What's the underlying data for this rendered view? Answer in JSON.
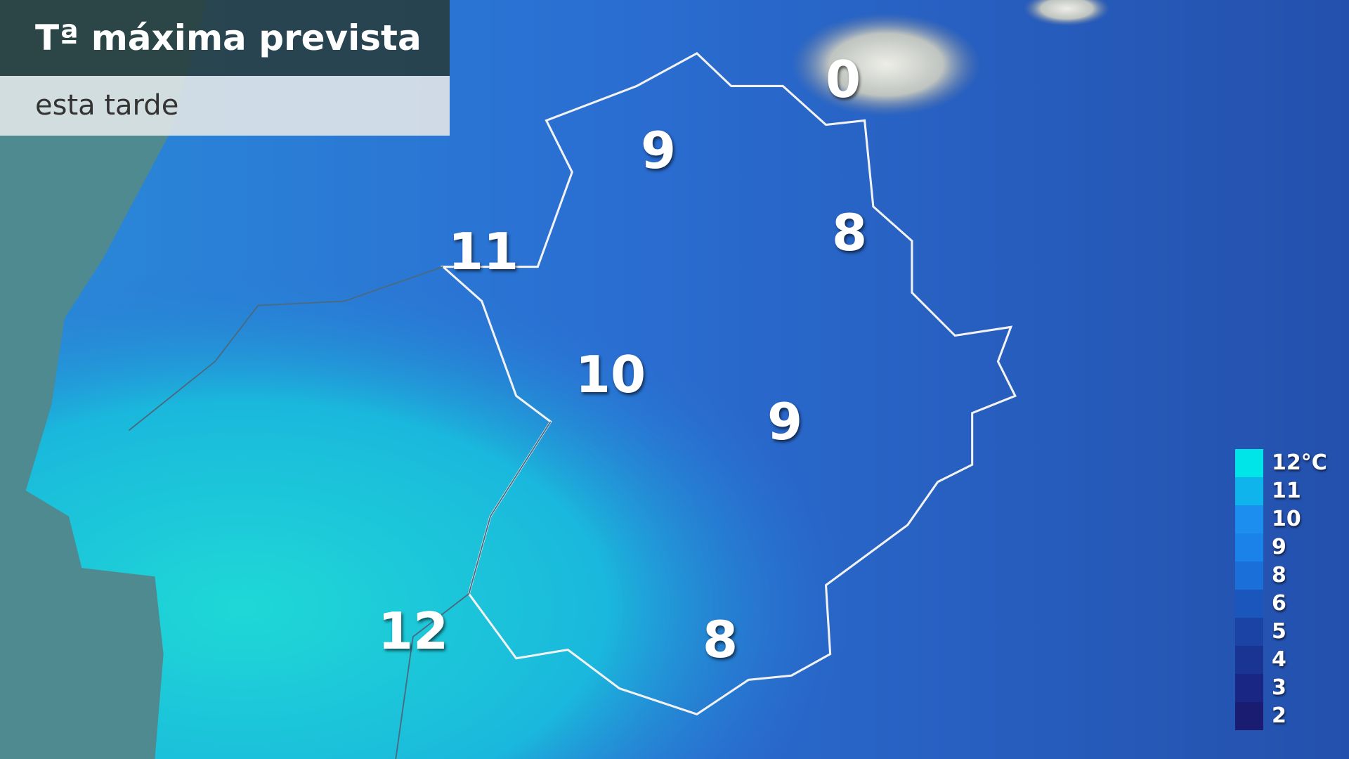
{
  "title": {
    "main": "Tª máxima prevista",
    "sub": "esta tarde"
  },
  "temperatures": [
    {
      "value": "0"
    },
    {
      "value": "9"
    },
    {
      "value": "11"
    },
    {
      "value": "8"
    },
    {
      "value": "10"
    },
    {
      "value": "9"
    },
    {
      "value": "12"
    },
    {
      "value": "8"
    }
  ],
  "legend": {
    "unit": "°C",
    "items": [
      {
        "label": "12°C",
        "color": "#00e5e8"
      },
      {
        "label": "11",
        "color": "#0fb4ec"
      },
      {
        "label": "10",
        "color": "#1b8ef0"
      },
      {
        "label": "9",
        "color": "#1a82e8"
      },
      {
        "label": "8",
        "color": "#1a6fd8"
      },
      {
        "label": "6",
        "color": "#1a56bb"
      },
      {
        "label": "5",
        "color": "#1a43a5"
      },
      {
        "label": "4",
        "color": "#1a3493"
      },
      {
        "label": "3",
        "color": "#1a2683"
      },
      {
        "label": "2",
        "color": "#1a1c72"
      }
    ]
  },
  "colors": {
    "sea": "#4e8a8f",
    "warm_land": "#1fd3d6",
    "mid_land": "#2a74d4",
    "cool_land": "#2350ad",
    "snow": "#e6e6e0"
  }
}
